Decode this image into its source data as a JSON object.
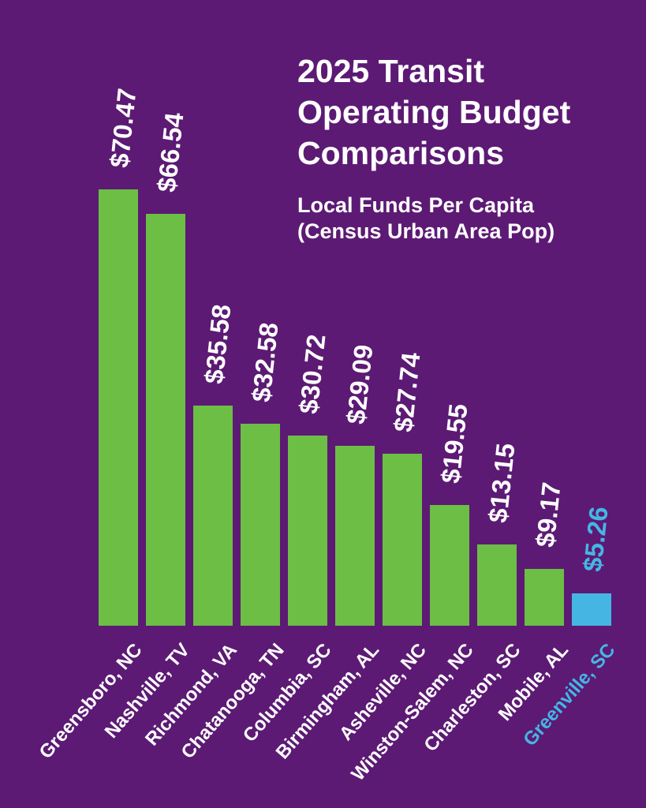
{
  "header": {
    "title_lines": [
      "2025 Transit",
      "Operating Budget",
      "Comparisons"
    ],
    "subtitle_lines": [
      "Local Funds Per Capita",
      "(Census Urban Area Pop)"
    ]
  },
  "colors": {
    "background": "#5C1A74",
    "bar_default": "#6CBE45",
    "bar_highlight": "#45B6E3",
    "label_default": "#FFFFFF",
    "label_highlight": "#45B6E3"
  },
  "chart_data": {
    "type": "bar",
    "title": "2025 Transit Operating Budget Comparisons",
    "subtitle": "Local Funds Per Capita (Census Urban Area Pop)",
    "categories": [
      "Greensboro, NC",
      "Nashville, TV",
      "Richmond, VA",
      "Chatanooga, TN",
      "Columbia, SC",
      "Birmingham, AL",
      "Asheville, NC",
      "Winston-Salem, NC",
      "Charleston, SC",
      "Mobile, AL",
      "Greenville, SC"
    ],
    "values": [
      70.47,
      66.54,
      35.58,
      32.58,
      30.72,
      29.09,
      27.74,
      19.55,
      13.15,
      9.17,
      5.26
    ],
    "value_labels": [
      "$70.47",
      "$66.54",
      "$35.58",
      "$32.58",
      "$30.72",
      "$29.09",
      "$27.74",
      "$19.55",
      "$13.15",
      "$9.17",
      "$5.26"
    ],
    "highlight_index": 10,
    "highlight_category": "Greenville, SC",
    "xlabel": "",
    "ylabel": "",
    "ylim": [
      0,
      70.47
    ],
    "grid": false,
    "legend": false,
    "axes_shown": false,
    "bar_labels_position": "above-bars-rotated",
    "category_labels_position": "below-bars-rotated"
  }
}
